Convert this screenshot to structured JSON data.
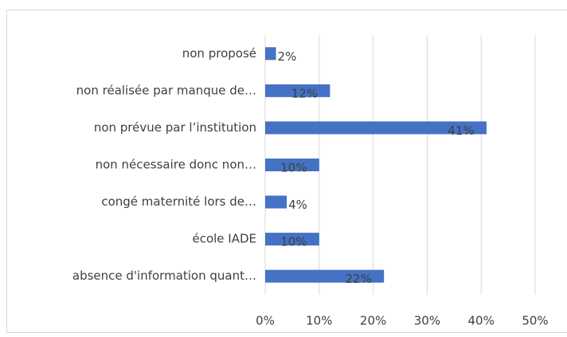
{
  "chart_data": {
    "type": "bar",
    "orientation": "horizontal",
    "categories": [
      "non proposé",
      "non réalisée par manque de…",
      "non prévue par l’institution",
      "non nécessaire donc non…",
      "congé maternité lors de…",
      "école IADE",
      "absence d'information quant…"
    ],
    "values": [
      2,
      12,
      41,
      10,
      4,
      10,
      22
    ],
    "value_labels": [
      "2%",
      "12%",
      "41%",
      "10%",
      "4%",
      "10%",
      "22%"
    ],
    "color": "#4472c4",
    "xlim": [
      0,
      50
    ],
    "xticks": [
      {
        "value": 0,
        "label": "0%"
      },
      {
        "value": 10,
        "label": "10%"
      },
      {
        "value": 20,
        "label": "20%"
      },
      {
        "value": 30,
        "label": "30%"
      },
      {
        "value": 40,
        "label": "40%"
      },
      {
        "value": 50,
        "label": "50%"
      }
    ],
    "grid": true
  }
}
